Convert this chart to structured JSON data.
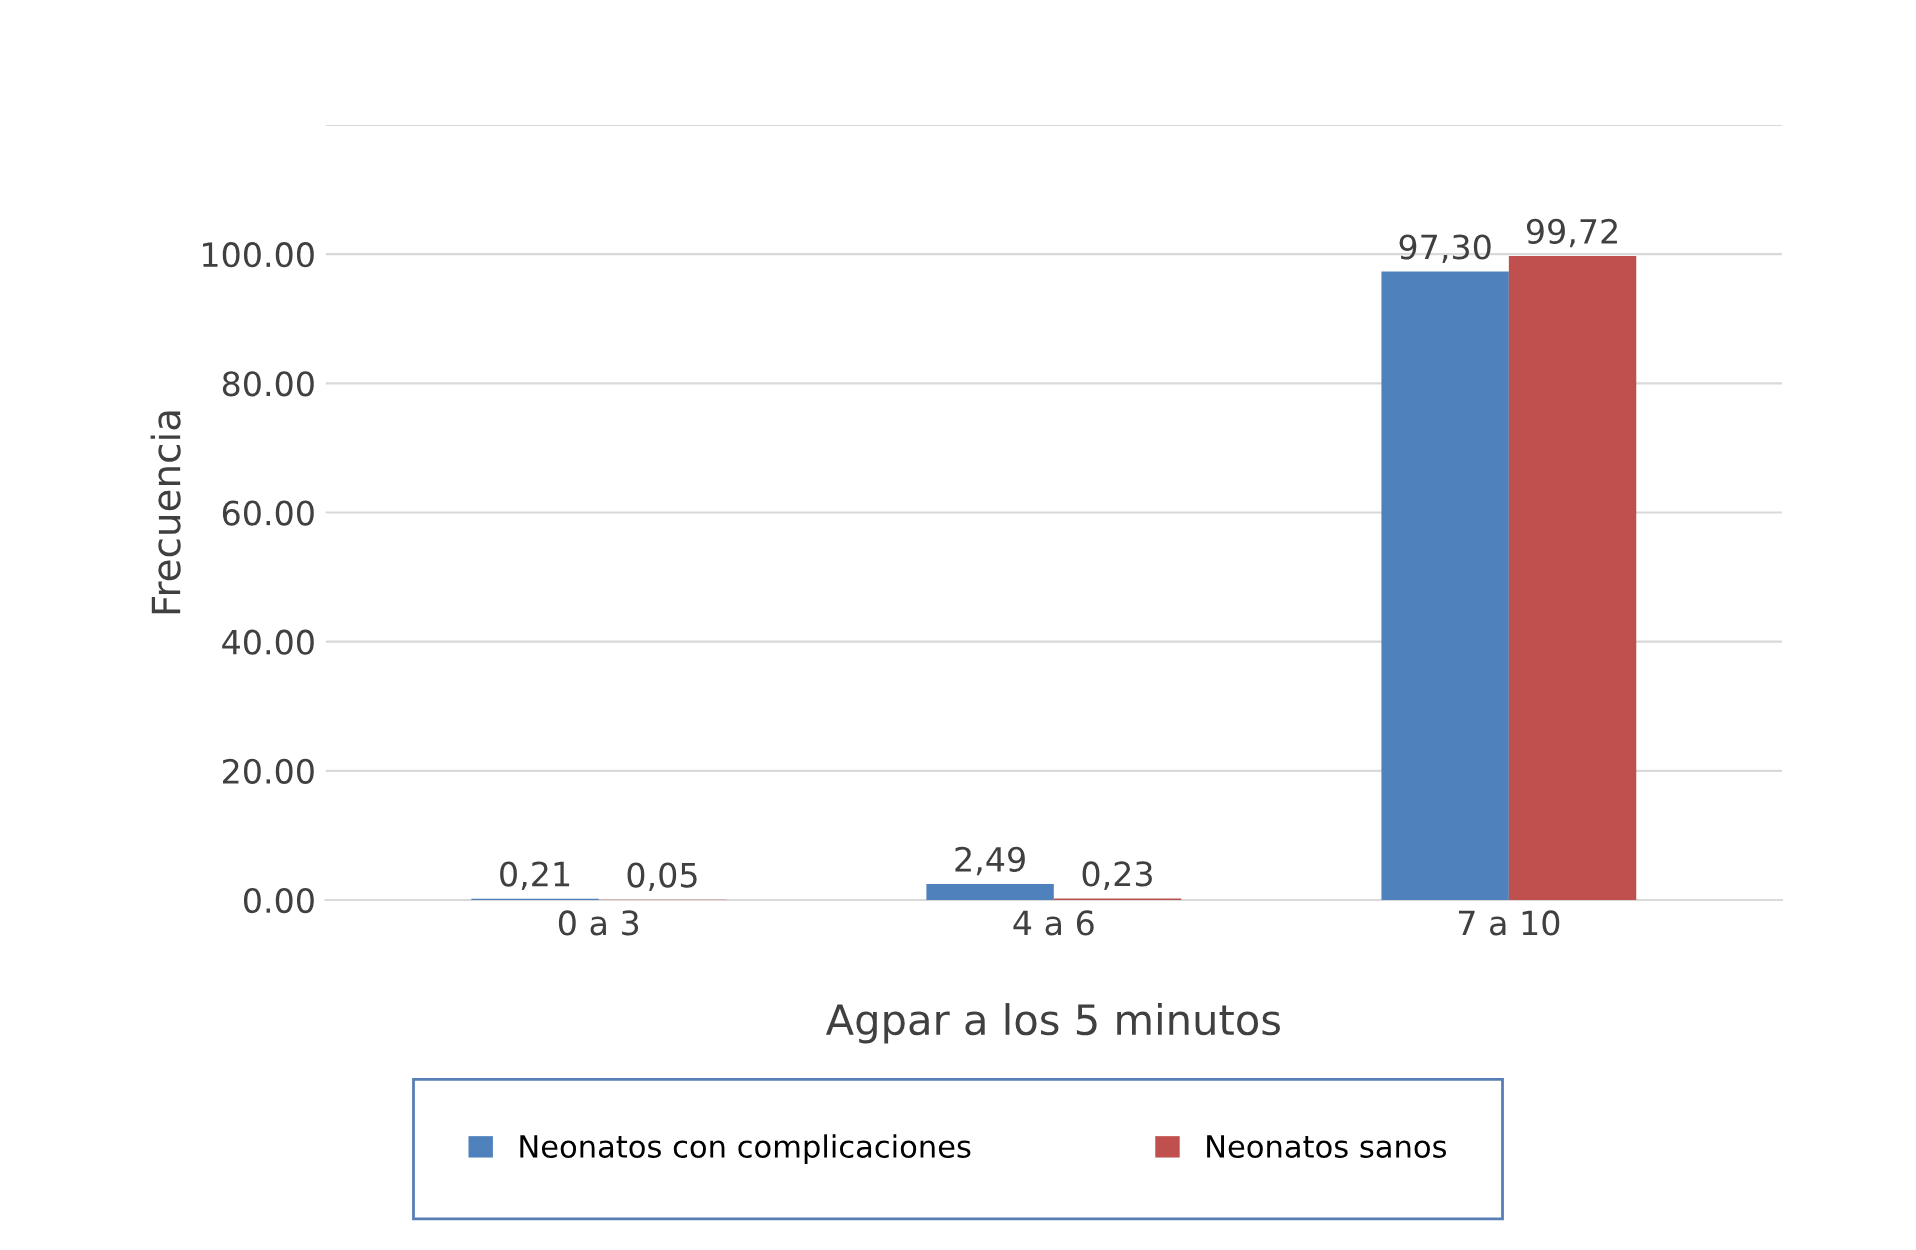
{
  "chart_data": {
    "type": "bar",
    "xlabel": "Agpar a los 5 minutos",
    "ylabel": "Frecuencia",
    "categories": [
      "0 a 3",
      "4 a 6",
      "7 a 10"
    ],
    "series": [
      {
        "name": "Neonatos con complicaciones",
        "color": "#4f81bd",
        "values": [
          0.21,
          2.49,
          97.3
        ],
        "value_labels": [
          "0,21",
          "2,49",
          "97,30"
        ]
      },
      {
        "name": "Neonatos sanos",
        "color": "#c0504d",
        "values": [
          0.05,
          0.23,
          99.72
        ],
        "value_labels": [
          "0,05",
          "0,23",
          "99,72"
        ]
      }
    ],
    "ylim": [
      0,
      120
    ],
    "yticks": [
      {
        "value": 0,
        "label": "0.00"
      },
      {
        "value": 20,
        "label": "20.00"
      },
      {
        "value": 40,
        "label": "40.00"
      },
      {
        "value": 60,
        "label": "60.00"
      },
      {
        "value": 80,
        "label": "80.00"
      },
      {
        "value": 100,
        "label": "100.00"
      },
      {
        "value": 120,
        "label": null
      }
    ],
    "grid": "y",
    "legend": "bottom"
  }
}
